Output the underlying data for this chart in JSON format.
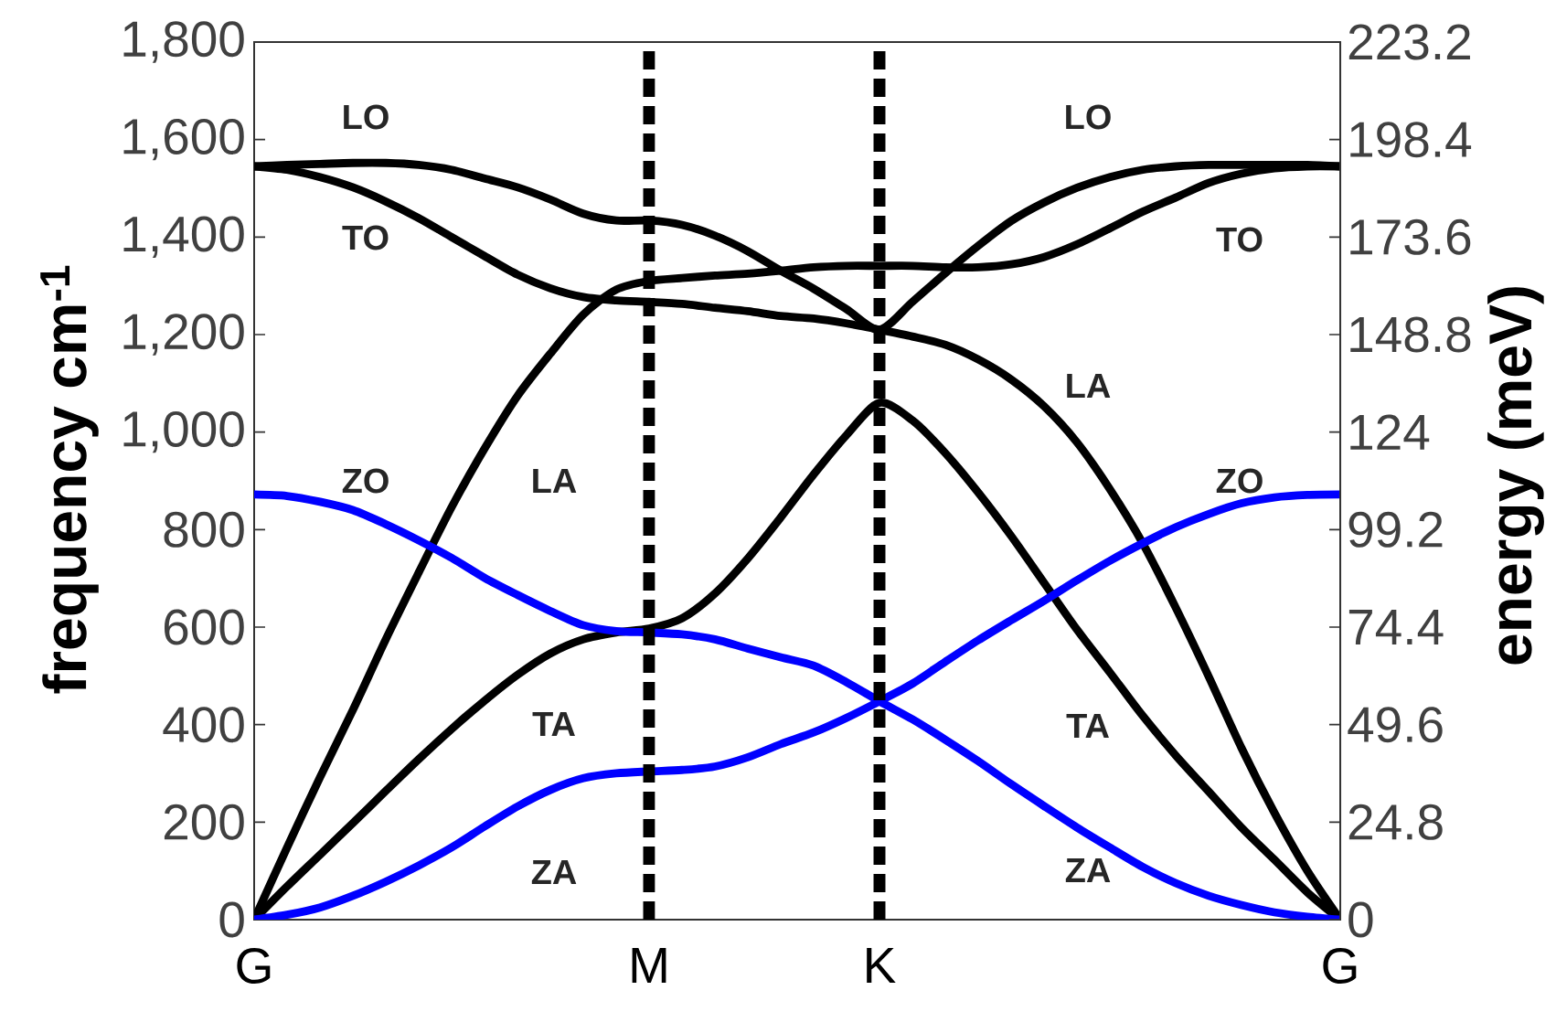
{
  "chart_data": {
    "type": "line",
    "ylabel": "frequency cm$^{-1}$",
    "y2label": "energy (meV)",
    "categories": [
      "G",
      null,
      null,
      null,
      null,
      null,
      null,
      null,
      null,
      null,
      null,
      null,
      "M",
      null,
      null,
      null,
      null,
      null,
      null,
      "K",
      null,
      null,
      null,
      null,
      null,
      null,
      null,
      null,
      null,
      null,
      null,
      null,
      null,
      "G"
    ],
    "ylim": [
      0,
      1800
    ],
    "yticks": [
      0,
      200,
      400,
      600,
      800,
      {
        "value": 1000,
        "label": "1,000"
      },
      {
        "value": 1200,
        "label": "1,200"
      },
      {
        "value": 1400,
        "label": "1,400"
      },
      {
        "value": 1600,
        "label": "1,600"
      },
      {
        "value": 1800,
        "label": "1,800"
      }
    ],
    "y2lim": [
      0,
      223.2
    ],
    "y2ticks": [
      0,
      24.8,
      49.6,
      74.4,
      99.2,
      124,
      148.8,
      173.6,
      198.4,
      223.2
    ],
    "series": [
      {
        "color": "#000000",
        "values": [
          1545,
          1548,
          1550,
          1552,
          1552,
          1548,
          1538,
          1520,
          1502,
          1477,
          1448,
          1434,
          1434,
          1425,
          1403,
          1371,
          1331,
          1294,
          1252,
          1210,
          1267,
          1326,
          1382,
          1433,
          1471,
          1501,
          1523,
          1538,
          1545,
          1548,
          1548,
          1548,
          1548,
          1545
        ]
      },
      {
        "color": "#000000",
        "values": [
          1545,
          1538,
          1523,
          1502,
          1473,
          1439,
          1400,
          1361,
          1323,
          1295,
          1277,
          1270,
          1267,
          1263,
          1255,
          1248,
          1238,
          1233,
          1223,
          1210,
          1196,
          1179,
          1149,
          1108,
          1053,
          979,
          883,
          772,
          640,
          499,
          352,
          219,
          100,
          0
        ]
      },
      {
        "color": "#000000",
        "values": [
          0,
          148,
          292,
          430,
          575,
          712,
          846,
          966,
          1074,
          1161,
          1241,
          1292,
          1310,
          1316,
          1321,
          1325,
          1331,
          1338,
          1341,
          1341,
          1341,
          1338,
          1338,
          1344,
          1359,
          1385,
          1418,
          1452,
          1481,
          1511,
          1530,
          1541,
          1545,
          1545
        ]
      },
      {
        "color": "#000000",
        "values": [
          0,
          68,
          133,
          198,
          264,
          329,
          391,
          449,
          502,
          546,
          575,
          589,
          597,
          618,
          669,
          741,
          825,
          913,
          994,
          1060,
          1024,
          957,
          876,
          787,
          691,
          595,
          507,
          418,
          337,
          263,
          189,
          123,
          56,
          0
        ]
      },
      {
        "color": "#0000ff",
        "values": [
          872,
          869,
          857,
          840,
          811,
          778,
          742,
          701,
          666,
          633,
          604,
          592,
          589,
          585,
          575,
          556,
          538,
          521,
          487,
          448,
          411,
          369,
          325,
          278,
          233,
          189,
          148,
          108,
          75,
          49,
          30,
          15,
          6,
          0
        ]
      },
      {
        "color": "#0000ff",
        "values": [
          0,
          10,
          25,
          49,
          78,
          111,
          148,
          191,
          232,
          266,
          290,
          300,
          304,
          307,
          314,
          333,
          360,
          384,
          414,
          448,
          484,
          529,
          573,
          614,
          654,
          696,
          736,
          772,
          805,
          832,
          854,
          866,
          871,
          872
        ]
      }
    ],
    "ref_lines": [
      {
        "axis": "x",
        "value": "M",
        "color": "#000000",
        "line_style": "dashed"
      },
      {
        "axis": "x",
        "value": "K",
        "color": "#000000",
        "line_style": "dashed"
      }
    ],
    "annotations": [
      "LO",
      "TO",
      "ZO",
      "LA",
      "TA",
      "ZA",
      "LO",
      "TO",
      "LA",
      "ZO",
      "TA",
      "ZA"
    ]
  }
}
